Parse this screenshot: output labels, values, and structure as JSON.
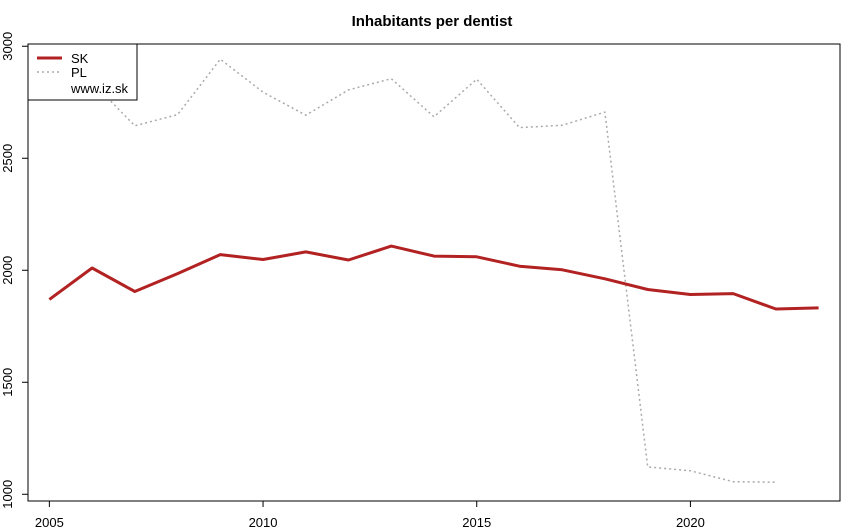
{
  "chart_data": {
    "type": "line",
    "title": "Inhabitants per dentist",
    "xlabel": "",
    "ylabel": "",
    "xlim": [
      2004.5,
      2023.5
    ],
    "ylim": [
      970,
      3010
    ],
    "x_ticks": [
      2005,
      2010,
      2015,
      2020
    ],
    "y_ticks": [
      1000,
      1500,
      2000,
      2500,
      3000
    ],
    "grid": false,
    "legend": {
      "placement": "top-left",
      "entries": [
        "SK",
        "PL"
      ],
      "note": "www.iz.sk"
    },
    "series": [
      {
        "name": "SK",
        "color": "#b22222",
        "style": "solid",
        "x": [
          2005,
          2006,
          2007,
          2008,
          2009,
          2010,
          2011,
          2012,
          2013,
          2014,
          2015,
          2016,
          2017,
          2018,
          2019,
          2020,
          2021,
          2022,
          2023
        ],
        "y": [
          1870,
          2010,
          1905,
          1985,
          2070,
          2048,
          2082,
          2046,
          2108,
          2063,
          2060,
          2018,
          2002,
          1962,
          1914,
          1892,
          1896,
          1827,
          1832
        ]
      },
      {
        "name": "PL",
        "color": "#aaaaaa",
        "style": "dotted",
        "x": [
          2005,
          2006,
          2007,
          2008,
          2009,
          2010,
          2011,
          2012,
          2013,
          2014,
          2015,
          2016,
          2017,
          2018,
          2019,
          2020,
          2021,
          2022
        ],
        "y": [
          2870,
          2840,
          2645,
          2695,
          2942,
          2795,
          2692,
          2805,
          2855,
          2685,
          2853,
          2637,
          2647,
          2706,
          1122,
          1105,
          1056,
          1054
        ]
      }
    ]
  }
}
